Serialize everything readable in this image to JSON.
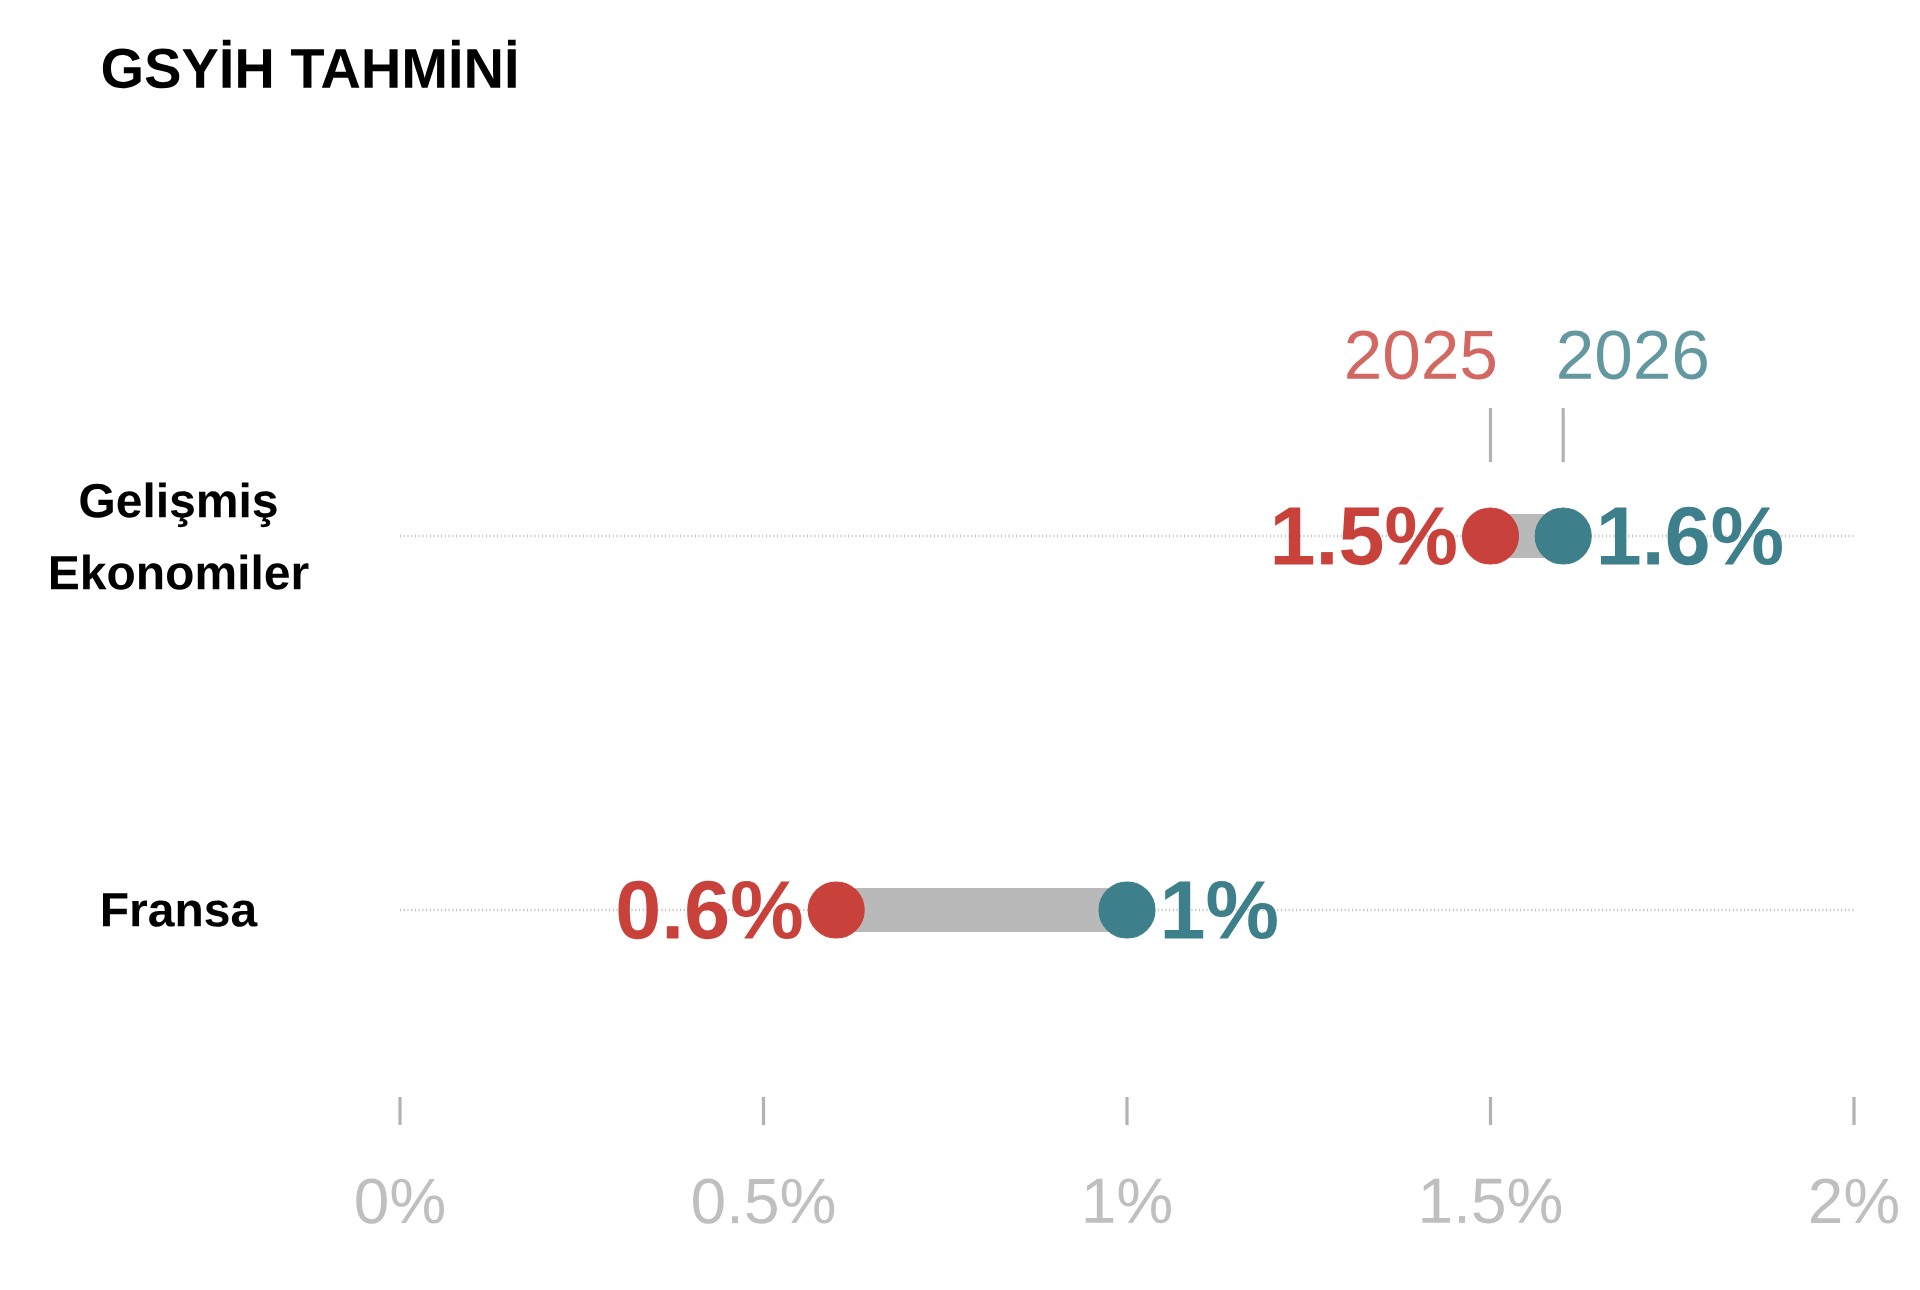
{
  "chart_data": {
    "type": "scatter",
    "title": "GSYİH TAHMİNİ",
    "orientation": "horizontal",
    "categories": [
      "Gelişmiş Ekonomiler",
      "Fransa"
    ],
    "series": [
      {
        "name": "2025",
        "color": "#c8413a",
        "values": [
          1.5,
          0.6
        ],
        "value_labels": [
          "1.5%",
          "0.6%"
        ]
      },
      {
        "name": "2026",
        "color": "#3d7f8a",
        "values": [
          1.6,
          1.0
        ],
        "value_labels": [
          "1.6%",
          "1%"
        ]
      }
    ],
    "xlim": [
      0,
      2
    ],
    "xticks": [
      {
        "value": 0,
        "label": "0%"
      },
      {
        "value": 0.5,
        "label": "0.5%"
      },
      {
        "value": 1,
        "label": "1%"
      },
      {
        "value": 1.5,
        "label": "1.5%"
      },
      {
        "value": 2,
        "label": "2%"
      }
    ],
    "grid": "y",
    "legend": false
  }
}
